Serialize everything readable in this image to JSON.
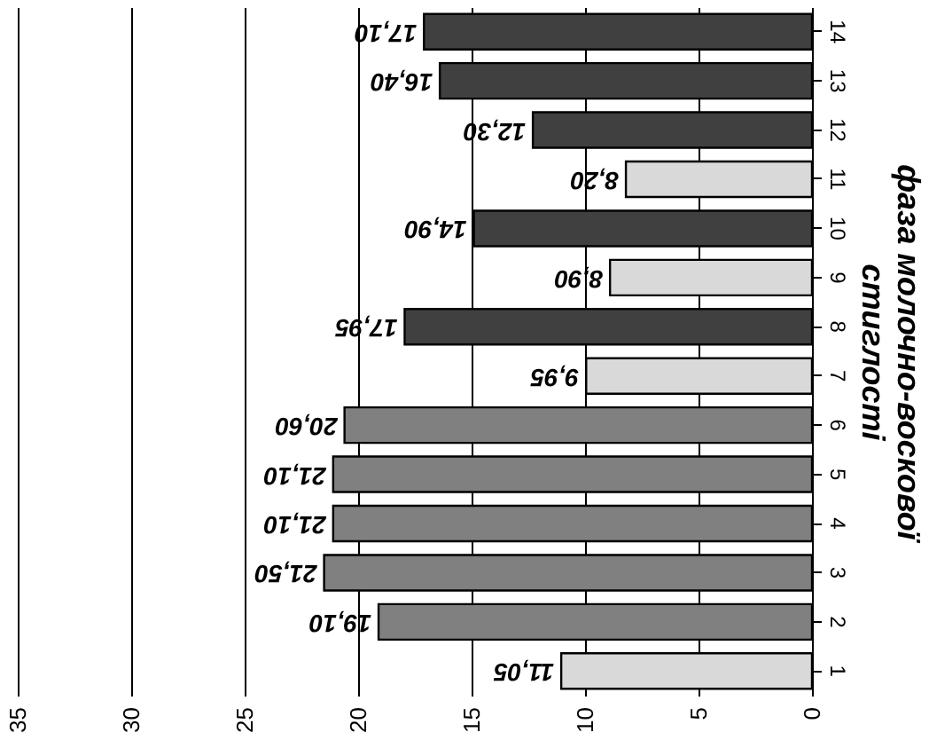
{
  "chart_data": {
    "type": "bar",
    "orientation": "horizontal",
    "ylabel": "фаза молочно-воскової стиглості",
    "categories": [
      "14",
      "13",
      "12",
      "11",
      "10",
      "9",
      "8",
      "7",
      "6",
      "5",
      "4",
      "3",
      "2",
      "1"
    ],
    "values": [
      17.1,
      16.4,
      12.3,
      8.2,
      14.9,
      8.9,
      17.95,
      9.95,
      20.6,
      21.1,
      21.1,
      21.5,
      19.1,
      11.05
    ],
    "value_labels": [
      "17,10",
      "16,40",
      "12,30",
      "8,20",
      "14,90",
      "8,90",
      "17,95",
      "9,95",
      "20,60",
      "21,10",
      "21,10",
      "21,50",
      "19,10",
      "11,05"
    ],
    "colors": [
      "#404040",
      "#404040",
      "#404040",
      "#d9d9d9",
      "#404040",
      "#d9d9d9",
      "#404040",
      "#d9d9d9",
      "#808080",
      "#808080",
      "#808080",
      "#808080",
      "#808080",
      "#d9d9d9"
    ],
    "xlim": [
      35,
      0
    ],
    "xticks": [
      0,
      5,
      10,
      15,
      20,
      25,
      30,
      35
    ],
    "grid": "x"
  }
}
